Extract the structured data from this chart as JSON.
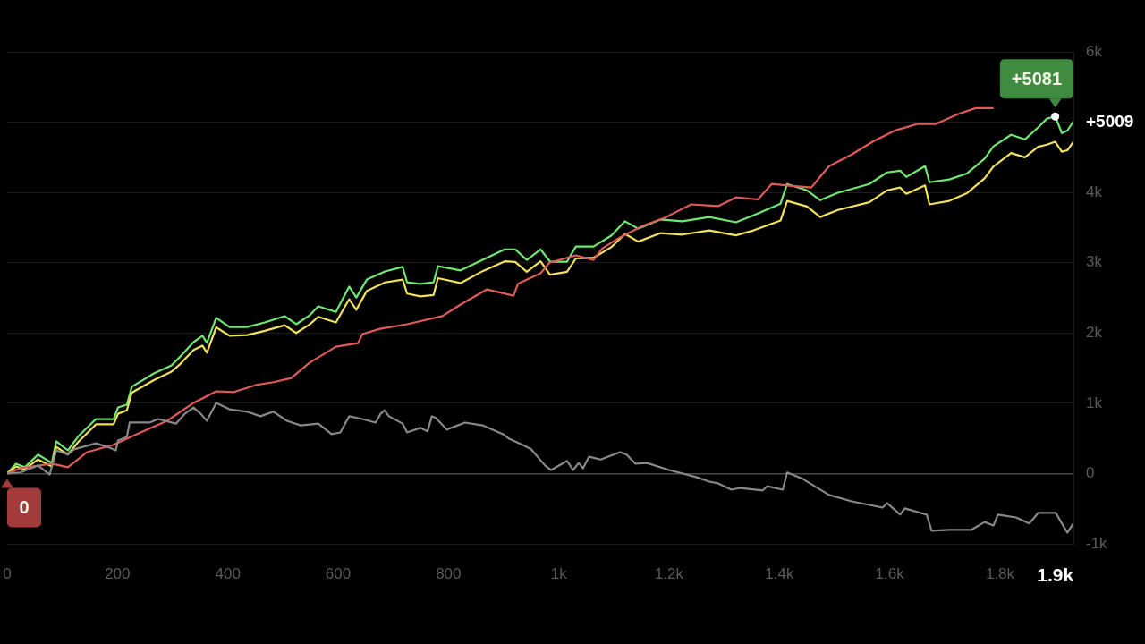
{
  "chart_data": {
    "type": "line",
    "marker": "none",
    "line_style": "solid",
    "grid": "y",
    "xlim": [
      0,
      1933
    ],
    "ylim": [
      -1000,
      6000
    ],
    "xticks": [
      0,
      200,
      400,
      600,
      800,
      {
        "value": 1000,
        "label": "1k"
      },
      {
        "value": 1200,
        "label": "1.2k"
      },
      {
        "value": 1400,
        "label": "1.4k"
      },
      {
        "value": 1600,
        "label": "1.6k"
      },
      {
        "value": 1800,
        "label": "1.8k"
      },
      {
        "value": 1900,
        "label": "1.9k"
      }
    ],
    "yticks": [
      {
        "value": -1000,
        "label": "-1k"
      },
      0,
      {
        "value": 1000,
        "label": "1k"
      },
      {
        "value": 2000,
        "label": "2k"
      },
      {
        "value": 3000,
        "label": "3k"
      },
      {
        "value": 4000,
        "label": "4k"
      },
      {
        "value": 5000,
        "label": null
      },
      {
        "value": 6000,
        "label": "6k"
      }
    ],
    "annotations": [
      {
        "text": "+5081",
        "x": 1900,
        "y": 5081
      },
      {
        "text": "+5009",
        "x": 1933,
        "y": 5009
      },
      {
        "text": "0",
        "x": 0,
        "y": 0
      }
    ],
    "series": [
      {
        "color": "#888888",
        "x": [
          0,
          24,
          56,
          77,
          89,
          110,
          121,
          161,
          185,
          197,
          201,
          217,
          222,
          258,
          274,
          306,
          322,
          338,
          351,
          362,
          379,
          403,
          435,
          459,
          483,
          507,
          532,
          564,
          588,
          604,
          620,
          644,
          668,
          677,
          684,
          692,
          717,
          725,
          749,
          762,
          770,
          777,
          797,
          830,
          862,
          899,
          910,
          934,
          950,
          975,
          986,
          1015,
          1026,
          1036,
          1044,
          1055,
          1076,
          1111,
          1123,
          1139,
          1160,
          1200,
          1249,
          1273,
          1289,
          1313,
          1329,
          1370,
          1378,
          1406,
          1414,
          1442,
          1490,
          1531,
          1587,
          1595,
          1619,
          1627,
          1667,
          1676,
          1708,
          1748,
          1772,
          1788,
          1796,
          1829,
          1853,
          1869,
          1901,
          1917,
          1922,
          1933
        ],
        "values": [
          0,
          15,
          115,
          -15,
          330,
          270,
          345,
          430,
          370,
          330,
          470,
          520,
          725,
          725,
          775,
          710,
          850,
          940,
          850,
          750,
          1005,
          915,
          880,
          815,
          880,
          750,
          685,
          710,
          560,
          585,
          815,
          775,
          725,
          850,
          900,
          815,
          710,
          585,
          650,
          600,
          815,
          790,
          625,
          725,
          685,
          560,
          495,
          410,
          345,
          115,
          50,
          180,
          50,
          150,
          75,
          240,
          200,
          305,
          270,
          140,
          150,
          50,
          -50,
          -115,
          -140,
          -230,
          -205,
          -240,
          -180,
          -230,
          15,
          -75,
          -305,
          -395,
          -485,
          -420,
          -585,
          -495,
          -585,
          -815,
          -800,
          -800,
          -690,
          -740,
          -585,
          -625,
          -710,
          -560,
          -560,
          -775,
          -840,
          -710
        ]
      },
      {
        "color": "#e05a5a",
        "x": [
          0,
          24,
          81,
          110,
          145,
          193,
          242,
          290,
          338,
          379,
          411,
          451,
          483,
          515,
          548,
          596,
          636,
          644,
          676,
          725,
          789,
          822,
          870,
          918,
          926,
          967,
          983,
          1031,
          1063,
          1079,
          1111,
          1152,
          1192,
          1240,
          1289,
          1321,
          1361,
          1386,
          1418,
          1458,
          1474,
          1490,
          1531,
          1571,
          1611,
          1651,
          1684,
          1724,
          1756,
          1788
        ],
        "values": [
          0,
          75,
          140,
          90,
          305,
          410,
          585,
          750,
          1005,
          1170,
          1160,
          1260,
          1300,
          1360,
          1575,
          1805,
          1855,
          1985,
          2060,
          2125,
          2240,
          2405,
          2620,
          2530,
          2700,
          2850,
          3000,
          3105,
          3040,
          3205,
          3360,
          3525,
          3640,
          3830,
          3805,
          3930,
          3900,
          4120,
          4095,
          4070,
          4225,
          4375,
          4540,
          4730,
          4885,
          4975,
          4975,
          5115,
          5200,
          5200
        ]
      },
      {
        "color": "#f0e05a",
        "x": [
          0,
          16,
          32,
          56,
          81,
          89,
          110,
          129,
          161,
          193,
          201,
          217,
          226,
          266,
          298,
          314,
          338,
          354,
          362,
          379,
          403,
          435,
          467,
          503,
          524,
          548,
          564,
          596,
          620,
          633,
          652,
          685,
          717,
          725,
          749,
          773,
          781,
          822,
          862,
          902,
          921,
          942,
          967,
          984,
          1015,
          1031,
          1063,
          1095,
          1120,
          1144,
          1184,
          1224,
          1273,
          1321,
          1353,
          1402,
          1414,
          1450,
          1474,
          1506,
          1563,
          1595,
          1619,
          1630,
          1664,
          1672,
          1708,
          1740,
          1772,
          1788,
          1820,
          1845,
          1869,
          1885,
          1900,
          1912,
          1922,
          1933
        ],
        "values": [
          0,
          100,
          60,
          200,
          100,
          380,
          270,
          450,
          700,
          700,
          850,
          900,
          1150,
          1330,
          1450,
          1560,
          1760,
          1820,
          1720,
          2080,
          1960,
          1970,
          2030,
          2110,
          2000,
          2120,
          2230,
          2150,
          2480,
          2330,
          2600,
          2720,
          2760,
          2560,
          2520,
          2540,
          2780,
          2710,
          2880,
          3020,
          3010,
          2870,
          3020,
          2830,
          2870,
          3060,
          3070,
          3220,
          3410,
          3300,
          3420,
          3400,
          3460,
          3390,
          3460,
          3600,
          3880,
          3800,
          3650,
          3750,
          3860,
          4030,
          4070,
          3980,
          4100,
          3830,
          3880,
          3990,
          4200,
          4370,
          4560,
          4500,
          4650,
          4680,
          4720,
          4580,
          4600,
          4720
        ]
      },
      {
        "color": "#6ee870",
        "x": [
          0,
          16,
          32,
          56,
          81,
          89,
          110,
          129,
          161,
          193,
          201,
          217,
          226,
          266,
          298,
          314,
          338,
          354,
          362,
          379,
          403,
          435,
          467,
          503,
          524,
          548,
          564,
          596,
          620,
          633,
          652,
          685,
          717,
          725,
          749,
          773,
          781,
          822,
          862,
          902,
          921,
          942,
          967,
          984,
          1015,
          1031,
          1063,
          1095,
          1120,
          1144,
          1184,
          1224,
          1273,
          1321,
          1353,
          1402,
          1414,
          1450,
          1474,
          1506,
          1563,
          1595,
          1619,
          1630,
          1664,
          1672,
          1708,
          1740,
          1772,
          1788,
          1820,
          1845,
          1869,
          1885,
          1900,
          1912,
          1922,
          1933
        ],
        "values": [
          0,
          140,
          90,
          270,
          150,
          460,
          330,
          530,
          775,
          775,
          940,
          980,
          1235,
          1425,
          1540,
          1665,
          1870,
          1960,
          1860,
          2215,
          2085,
          2085,
          2150,
          2240,
          2125,
          2250,
          2380,
          2300,
          2660,
          2505,
          2760,
          2875,
          2940,
          2720,
          2700,
          2720,
          2950,
          2890,
          3040,
          3190,
          3190,
          3040,
          3190,
          3015,
          3015,
          3230,
          3230,
          3385,
          3590,
          3485,
          3615,
          3590,
          3650,
          3575,
          3675,
          3840,
          4120,
          4030,
          3890,
          3995,
          4120,
          4285,
          4310,
          4220,
          4375,
          4145,
          4185,
          4270,
          4480,
          4655,
          4820,
          4755,
          4925,
          5050,
          5081,
          4845,
          4880,
          5009
        ]
      }
    ]
  }
}
